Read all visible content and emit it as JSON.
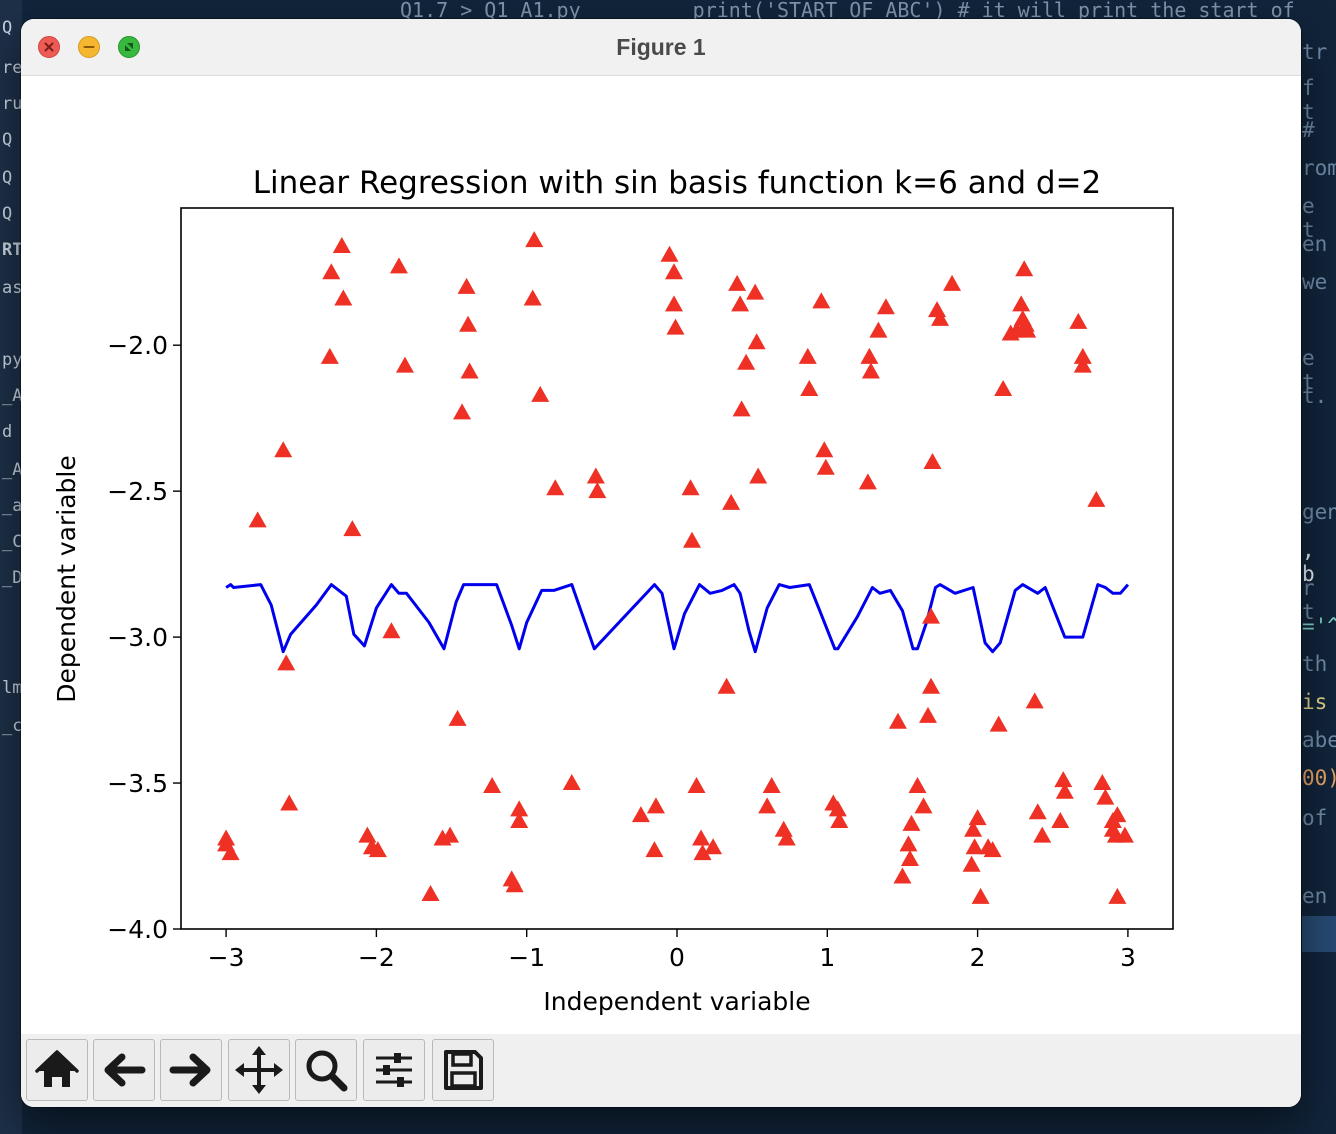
{
  "window": {
    "title": "Figure 1"
  },
  "toolbar": {
    "buttons": [
      {
        "name": "home",
        "icon": "home-icon"
      },
      {
        "name": "back",
        "icon": "arrow-left-icon"
      },
      {
        "name": "forward",
        "icon": "arrow-right-icon"
      },
      {
        "name": "pan",
        "icon": "move-icon"
      },
      {
        "name": "zoom",
        "icon": "magnifier-icon"
      },
      {
        "name": "configure-subplots",
        "icon": "sliders-icon"
      },
      {
        "name": "save",
        "icon": "floppy-disk-icon"
      }
    ]
  },
  "chart_data": {
    "type": "scatter",
    "title": "Linear Regression with sin basis function k=6 and d=2",
    "xlabel": "Independent variable",
    "ylabel": "Dependent variable",
    "xlim": [
      -3.3,
      3.3
    ],
    "ylim": [
      -4.0,
      -1.53
    ],
    "xticks": [
      -3,
      -2,
      -1,
      0,
      1,
      2,
      3
    ],
    "yticks": [
      -4.0,
      -3.5,
      -3.0,
      -2.5,
      -2.0
    ],
    "xtick_labels": [
      "−3",
      "−2",
      "−1",
      "0",
      "1",
      "2",
      "3"
    ],
    "ytick_labels": [
      "−4.0",
      "−3.5",
      "−3.0",
      "−2.5",
      "−2.0"
    ],
    "grid": false,
    "series": [
      {
        "kind": "scatter",
        "marker": "triangle-up",
        "color": "#ee3124",
        "points": [
          [
            -3.0,
            -3.69
          ],
          [
            -3.0,
            -3.71
          ],
          [
            -2.97,
            -3.74
          ],
          [
            -2.79,
            -2.6
          ],
          [
            -2.62,
            -2.36
          ],
          [
            -2.6,
            -3.09
          ],
          [
            -2.58,
            -3.57
          ],
          [
            -2.31,
            -2.04
          ],
          [
            -2.3,
            -1.75
          ],
          [
            -2.23,
            -1.66
          ],
          [
            -2.22,
            -1.84
          ],
          [
            -2.16,
            -2.63
          ],
          [
            -2.06,
            -3.68
          ],
          [
            -2.03,
            -3.72
          ],
          [
            -1.99,
            -3.73
          ],
          [
            -1.9,
            -2.98
          ],
          [
            -1.85,
            -1.73
          ],
          [
            -1.81,
            -2.07
          ],
          [
            -1.64,
            -3.88
          ],
          [
            -1.56,
            -3.69
          ],
          [
            -1.51,
            -3.68
          ],
          [
            -1.46,
            -3.28
          ],
          [
            -1.43,
            -2.23
          ],
          [
            -1.4,
            -1.8
          ],
          [
            -1.39,
            -1.93
          ],
          [
            -1.38,
            -2.09
          ],
          [
            -1.23,
            -3.51
          ],
          [
            -1.1,
            -3.83
          ],
          [
            -1.08,
            -3.85
          ],
          [
            -1.05,
            -3.59
          ],
          [
            -1.05,
            -3.63
          ],
          [
            -0.96,
            -1.84
          ],
          [
            -0.95,
            -1.64
          ],
          [
            -0.91,
            -2.17
          ],
          [
            -0.81,
            -2.49
          ],
          [
            -0.7,
            -3.5
          ],
          [
            -0.54,
            -2.45
          ],
          [
            -0.53,
            -2.5
          ],
          [
            -0.24,
            -3.61
          ],
          [
            -0.14,
            -3.58
          ],
          [
            -0.15,
            -3.73
          ],
          [
            -0.05,
            -1.69
          ],
          [
            -0.02,
            -1.75
          ],
          [
            -0.02,
            -1.86
          ],
          [
            -0.01,
            -1.94
          ],
          [
            0.09,
            -2.49
          ],
          [
            0.1,
            -2.67
          ],
          [
            0.13,
            -3.51
          ],
          [
            0.16,
            -3.69
          ],
          [
            0.17,
            -3.74
          ],
          [
            0.24,
            -3.72
          ],
          [
            0.33,
            -3.17
          ],
          [
            0.36,
            -2.54
          ],
          [
            0.4,
            -1.79
          ],
          [
            0.42,
            -1.86
          ],
          [
            0.43,
            -2.22
          ],
          [
            0.46,
            -2.06
          ],
          [
            0.52,
            -1.82
          ],
          [
            0.53,
            -1.99
          ],
          [
            0.54,
            -2.45
          ],
          [
            0.6,
            -3.58
          ],
          [
            0.63,
            -3.51
          ],
          [
            0.71,
            -3.66
          ],
          [
            0.73,
            -3.69
          ],
          [
            0.87,
            -2.04
          ],
          [
            0.88,
            -2.15
          ],
          [
            0.96,
            -1.85
          ],
          [
            0.98,
            -2.36
          ],
          [
            0.99,
            -2.42
          ],
          [
            1.04,
            -3.57
          ],
          [
            1.07,
            -3.59
          ],
          [
            1.08,
            -3.63
          ],
          [
            1.27,
            -2.47
          ],
          [
            1.28,
            -2.04
          ],
          [
            1.29,
            -2.09
          ],
          [
            1.34,
            -1.95
          ],
          [
            1.39,
            -1.87
          ],
          [
            1.47,
            -3.29
          ],
          [
            1.5,
            -3.82
          ],
          [
            1.54,
            -3.71
          ],
          [
            1.55,
            -3.76
          ],
          [
            1.56,
            -3.64
          ],
          [
            1.6,
            -3.51
          ],
          [
            1.64,
            -3.58
          ],
          [
            1.67,
            -3.27
          ],
          [
            1.69,
            -2.93
          ],
          [
            1.69,
            -3.17
          ],
          [
            1.7,
            -2.4
          ],
          [
            1.73,
            -1.88
          ],
          [
            1.75,
            -1.91
          ],
          [
            1.83,
            -1.79
          ],
          [
            1.96,
            -3.78
          ],
          [
            1.97,
            -3.66
          ],
          [
            1.98,
            -3.72
          ],
          [
            2.0,
            -3.62
          ],
          [
            2.02,
            -3.89
          ],
          [
            2.07,
            -3.72
          ],
          [
            2.1,
            -3.73
          ],
          [
            2.14,
            -3.3
          ],
          [
            2.17,
            -2.15
          ],
          [
            2.22,
            -1.96
          ],
          [
            2.26,
            -1.95
          ],
          [
            2.29,
            -1.86
          ],
          [
            2.3,
            -1.91
          ],
          [
            2.31,
            -1.74
          ],
          [
            2.32,
            -1.93
          ],
          [
            2.33,
            -1.95
          ],
          [
            2.38,
            -3.22
          ],
          [
            2.4,
            -3.6
          ],
          [
            2.43,
            -3.68
          ],
          [
            2.55,
            -3.63
          ],
          [
            2.57,
            -3.49
          ],
          [
            2.58,
            -3.53
          ],
          [
            2.67,
            -1.92
          ],
          [
            2.7,
            -2.04
          ],
          [
            2.7,
            -2.07
          ],
          [
            2.79,
            -2.53
          ],
          [
            2.83,
            -3.5
          ],
          [
            2.85,
            -3.55
          ],
          [
            2.9,
            -3.63
          ],
          [
            2.9,
            -3.66
          ],
          [
            2.93,
            -3.61
          ],
          [
            2.92,
            -3.68
          ],
          [
            2.93,
            -3.89
          ],
          [
            2.98,
            -3.68
          ]
        ]
      },
      {
        "kind": "line",
        "color": "#0000ee",
        "points": [
          [
            -3.0,
            -2.83
          ],
          [
            -2.97,
            -2.82
          ],
          [
            -2.95,
            -2.83
          ],
          [
            -2.77,
            -2.82
          ],
          [
            -2.7,
            -2.89
          ],
          [
            -2.62,
            -3.05
          ],
          [
            -2.57,
            -2.99
          ],
          [
            -2.4,
            -2.89
          ],
          [
            -2.3,
            -2.82
          ],
          [
            -2.2,
            -2.86
          ],
          [
            -2.15,
            -2.99
          ],
          [
            -2.08,
            -3.03
          ],
          [
            -2.0,
            -2.9
          ],
          [
            -1.9,
            -2.82
          ],
          [
            -1.85,
            -2.85
          ],
          [
            -1.8,
            -2.85
          ],
          [
            -1.65,
            -2.95
          ],
          [
            -1.55,
            -3.04
          ],
          [
            -1.47,
            -2.88
          ],
          [
            -1.42,
            -2.82
          ],
          [
            -1.2,
            -2.82
          ],
          [
            -1.1,
            -2.96
          ],
          [
            -1.05,
            -3.04
          ],
          [
            -1.0,
            -2.95
          ],
          [
            -0.9,
            -2.84
          ],
          [
            -0.82,
            -2.84
          ],
          [
            -0.7,
            -2.82
          ],
          [
            -0.55,
            -3.04
          ],
          [
            -0.15,
            -2.82
          ],
          [
            -0.1,
            -2.85
          ],
          [
            -0.02,
            -3.04
          ],
          [
            0.05,
            -2.92
          ],
          [
            0.15,
            -2.82
          ],
          [
            0.22,
            -2.85
          ],
          [
            0.3,
            -2.84
          ],
          [
            0.38,
            -2.82
          ],
          [
            0.42,
            -2.85
          ],
          [
            0.48,
            -2.98
          ],
          [
            0.52,
            -3.05
          ],
          [
            0.6,
            -2.9
          ],
          [
            0.68,
            -2.82
          ],
          [
            0.75,
            -2.83
          ],
          [
            0.88,
            -2.82
          ],
          [
            0.95,
            -2.91
          ],
          [
            1.05,
            -3.04
          ],
          [
            1.07,
            -3.04
          ],
          [
            1.2,
            -2.93
          ],
          [
            1.3,
            -2.83
          ],
          [
            1.35,
            -2.85
          ],
          [
            1.42,
            -2.84
          ],
          [
            1.5,
            -2.91
          ],
          [
            1.57,
            -3.04
          ],
          [
            1.6,
            -3.04
          ],
          [
            1.66,
            -2.95
          ],
          [
            1.72,
            -2.83
          ],
          [
            1.75,
            -2.82
          ],
          [
            1.85,
            -2.85
          ],
          [
            1.97,
            -2.83
          ],
          [
            2.05,
            -3.02
          ],
          [
            2.1,
            -3.05
          ],
          [
            2.15,
            -3.02
          ],
          [
            2.25,
            -2.84
          ],
          [
            2.3,
            -2.82
          ],
          [
            2.4,
            -2.85
          ],
          [
            2.45,
            -2.83
          ],
          [
            2.58,
            -3.0
          ],
          [
            2.7,
            -3.0
          ],
          [
            2.8,
            -2.82
          ],
          [
            2.85,
            -2.83
          ],
          [
            2.9,
            -2.85
          ],
          [
            2.95,
            -2.85
          ],
          [
            3.0,
            -2.82
          ]
        ]
      }
    ]
  }
}
